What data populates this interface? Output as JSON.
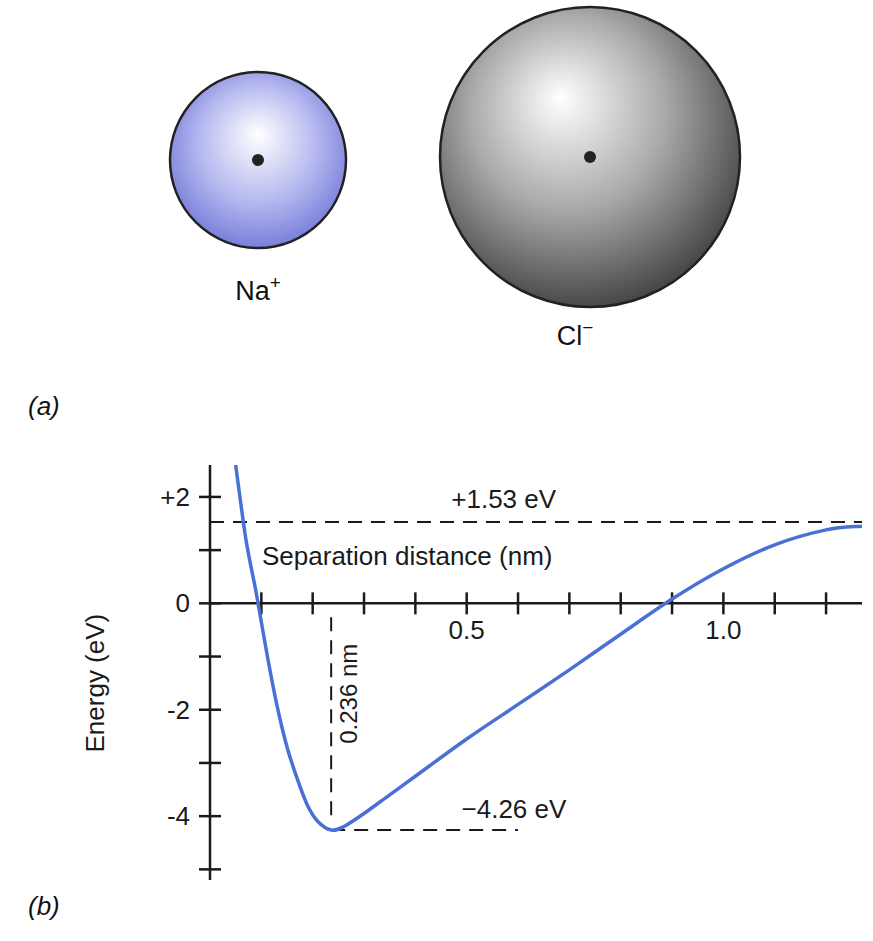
{
  "diagram": {
    "panel_label": "(a)",
    "ions": [
      {
        "symbol": "Na",
        "charge": "+"
      },
      {
        "symbol": "Cl",
        "charge": "−"
      }
    ]
  },
  "chart_data": {
    "type": "line",
    "panel_label": "(b)",
    "x_label": "Separation distance (nm)",
    "y_label": "Energy (eV)",
    "x": [
      0.05,
      0.07,
      0.09,
      0.11,
      0.13,
      0.15,
      0.17,
      0.19,
      0.21,
      0.236,
      0.26,
      0.3,
      0.35,
      0.4,
      0.5,
      0.6,
      0.7,
      0.8,
      0.9,
      1.0,
      1.1,
      1.2,
      1.27
    ],
    "values": [
      2.6,
      1.2,
      0.2,
      -0.9,
      -1.9,
      -2.7,
      -3.3,
      -3.8,
      -4.1,
      -4.26,
      -4.2,
      -3.95,
      -3.6,
      -3.25,
      -2.55,
      -1.9,
      -1.25,
      -0.58,
      0.08,
      0.65,
      1.1,
      1.38,
      1.45
    ],
    "color": "#4a70d8",
    "xlim": [
      0,
      1.27
    ],
    "ylim": [
      -5.2,
      2.6
    ],
    "xticks": [
      0.5,
      {
        "value": 1.0,
        "label": "1.0"
      }
    ],
    "xminor": [
      0.1,
      0.2,
      0.3,
      0.4,
      0.6,
      0.7,
      0.8,
      0.9,
      1.1,
      1.2
    ],
    "yticks": [
      {
        "value": 2,
        "label": "+2"
      },
      0,
      -2,
      -4
    ],
    "yminor": [
      1,
      -1,
      -3,
      -5
    ],
    "annotations": [
      {
        "text": "+1.53 eV",
        "y": 1.53
      },
      {
        "text": "−4.26 eV",
        "x": 0.236,
        "y": -4.26
      },
      {
        "text": "0.236 nm",
        "x": 0.236
      }
    ]
  }
}
